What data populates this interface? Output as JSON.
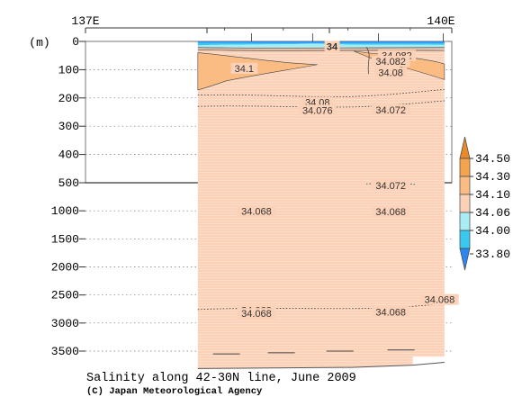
{
  "chart_data": {
    "type": "heatmap",
    "title": "Salinity along 42-30N line, June 2009",
    "credit": "(C) Japan Meteorological Agency",
    "x_axis": {
      "ticks": [
        "137E",
        "140E"
      ],
      "range": [
        137,
        140
      ]
    },
    "y_axis": {
      "unit_label": "(m)",
      "upper_ticks": [
        0,
        100,
        200,
        300,
        400,
        500
      ],
      "lower_ticks": [
        1000,
        1500,
        2000,
        2500,
        3000,
        3500
      ],
      "upper_range": [
        0,
        500
      ],
      "lower_range": [
        500,
        3700
      ]
    },
    "section_extent_lon": [
      137.92,
      139.94
    ],
    "colorbar": {
      "levels": [
        "33.80",
        "34.00",
        "34.06",
        "34.10",
        "34.30",
        "34.50"
      ],
      "colors": [
        "#2e86f0",
        "#38c8f0",
        "#a8ecf4",
        "#fbd2b8",
        "#fbbc84",
        "#f5a34c",
        "#e88a2a"
      ]
    },
    "background_color": "#fbd2b8",
    "contour_labels": [
      {
        "text": "34",
        "lon": 139.02,
        "depth": 17,
        "bold": true
      },
      {
        "text": "34.082",
        "lon": 139.55,
        "depth": 50
      },
      {
        "text": "34.082",
        "lon": 139.5,
        "depth": 70
      },
      {
        "text": "34.08",
        "lon": 139.5,
        "depth": 110
      },
      {
        "text": "34.1",
        "lon": 138.3,
        "depth": 95
      },
      {
        "text": "34.08",
        "lon": 138.9,
        "depth": 215
      },
      {
        "text": "34.076",
        "lon": 138.9,
        "depth": 243
      },
      {
        "text": "34.072",
        "lon": 139.5,
        "depth": 242
      },
      {
        "text": "34.072",
        "lon": 139.5,
        "depth": 545
      },
      {
        "text": "34.068",
        "lon": 138.4,
        "depth": 1005
      },
      {
        "text": "34.068",
        "lon": 139.5,
        "depth": 1015
      },
      {
        "text": "34.068",
        "lon": 138.4,
        "depth": 2770
      },
      {
        "text": "34.068",
        "lon": 138.4,
        "depth": 2830
      },
      {
        "text": "34.068",
        "lon": 139.5,
        "depth": 2800
      },
      {
        "text": "34.068",
        "lon": 139.9,
        "depth": 2580
      }
    ]
  }
}
